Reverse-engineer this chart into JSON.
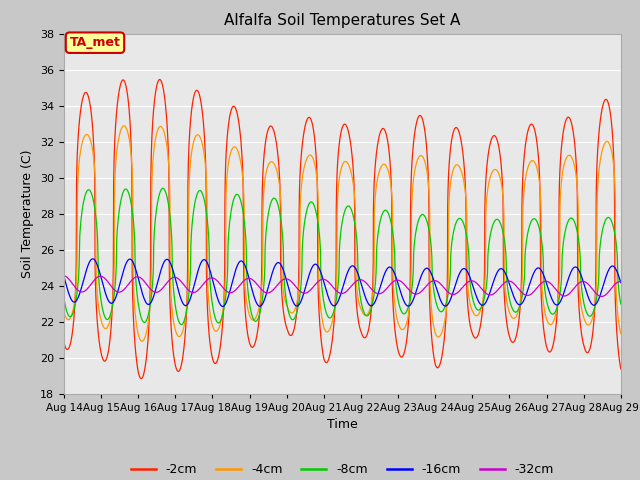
{
  "title": "Alfalfa Soil Temperatures Set A",
  "xlabel": "Time",
  "ylabel": "Soil Temperature (C)",
  "ylim": [
    18,
    38
  ],
  "yticks": [
    18,
    20,
    22,
    24,
    26,
    28,
    30,
    32,
    34,
    36,
    38
  ],
  "xtick_labels": [
    "Aug 14",
    "Aug 15",
    "Aug 16",
    "Aug 17",
    "Aug 18",
    "Aug 19",
    "Aug 20",
    "Aug 21",
    "Aug 22",
    "Aug 23",
    "Aug 24",
    "Aug 25",
    "Aug 26",
    "Aug 27",
    "Aug 28",
    "Aug 29"
  ],
  "legend_labels": [
    "-2cm",
    "-4cm",
    "-8cm",
    "-16cm",
    "-32cm"
  ],
  "legend_colors": [
    "#ff2200",
    "#ff9900",
    "#00cc00",
    "#0000ff",
    "#cc00cc"
  ],
  "fig_bg": "#c8c8c8",
  "ax_bg": "#e8e8e8",
  "grid_color": "#ffffff",
  "annotation_text": "TA_met",
  "annotation_bg": "#ffff99",
  "annotation_border": "#cc0000",
  "annotation_text_color": "#cc0000"
}
